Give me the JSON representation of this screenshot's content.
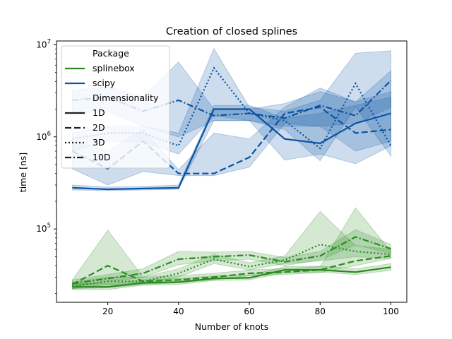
{
  "chart_data": {
    "type": "line",
    "title": "Creation of closed splines",
    "xlabel": "Number of knots",
    "ylabel": "time [ns]",
    "yscale": "log",
    "xlim": [
      5.5,
      104.5
    ],
    "ylim": [
      16000,
      11000000
    ],
    "xticks": [
      20,
      40,
      60,
      80,
      100
    ],
    "yticks": [
      {
        "value": 100000,
        "base": "10",
        "exp": "5"
      },
      {
        "value": 1000000,
        "base": "10",
        "exp": "6"
      },
      {
        "value": 10000000,
        "base": "10",
        "exp": "7"
      }
    ],
    "grid": false,
    "legend_position": "top-left",
    "x": [
      10,
      20,
      30,
      40,
      50,
      60,
      70,
      80,
      90,
      100
    ],
    "colors": {
      "splinebox": "#2a8a1f",
      "scipy": "#0b53a3"
    },
    "legend": {
      "package_title": "Package",
      "packages": [
        "splinebox",
        "scipy"
      ],
      "dim_title": "Dimensionality",
      "dims": [
        "1D",
        "2D",
        "3D",
        "10D"
      ]
    },
    "series": [
      {
        "package": "splinebox",
        "dim": "1D",
        "values": [
          23500,
          23500,
          26000,
          26500,
          29000,
          29500,
          36000,
          36000,
          34000,
          38500
        ],
        "lower": [
          22000,
          22000,
          24500,
          25000,
          27500,
          28000,
          33500,
          34000,
          32000,
          35500
        ],
        "upper": [
          25500,
          25500,
          28000,
          29000,
          31000,
          31500,
          39000,
          39500,
          37000,
          42000
        ]
      },
      {
        "package": "splinebox",
        "dim": "2D",
        "values": [
          25000,
          40000,
          27000,
          28000,
          30000,
          33000,
          34000,
          36000,
          45000,
          51000
        ],
        "lower": [
          22500,
          23000,
          25000,
          26000,
          28000,
          31000,
          32000,
          33500,
          40000,
          48000
        ],
        "upper": [
          28000,
          97000,
          30000,
          31000,
          33000,
          36000,
          37000,
          39000,
          170000,
          57000
        ]
      },
      {
        "package": "splinebox",
        "dim": "3D",
        "values": [
          24000,
          27000,
          27000,
          33000,
          47000,
          39000,
          46000,
          68000,
          57000,
          53000
        ],
        "lower": [
          22500,
          25000,
          25500,
          30000,
          42000,
          36000,
          42000,
          45000,
          50000,
          48000
        ],
        "upper": [
          26500,
          30000,
          30000,
          37000,
          53000,
          43000,
          51000,
          155000,
          66000,
          60000
        ]
      },
      {
        "package": "splinebox",
        "dim": "10D",
        "values": [
          25500,
          29000,
          33000,
          47000,
          50000,
          52000,
          44000,
          51000,
          82000,
          61000
        ],
        "lower": [
          23500,
          26500,
          30000,
          41000,
          45000,
          47000,
          40000,
          46000,
          67000,
          54000
        ],
        "upper": [
          28000,
          32000,
          37000,
          57000,
          56000,
          57000,
          49000,
          57000,
          98000,
          68000
        ]
      },
      {
        "package": "scipy",
        "dim": "1D",
        "values": [
          280000,
          270000,
          275000,
          280000,
          2000000,
          2000000,
          950000,
          850000,
          1400000,
          1800000
        ],
        "lower": [
          265000,
          262000,
          265000,
          270000,
          1500000,
          1500000,
          560000,
          650000,
          510000,
          800000
        ],
        "upper": [
          300000,
          285000,
          290000,
          300000,
          2200000,
          2200000,
          1600000,
          1800000,
          2200000,
          2700000
        ]
      },
      {
        "package": "scipy",
        "dim": "2D",
        "values": [
          700000,
          450000,
          900000,
          400000,
          400000,
          600000,
          1800000,
          2100000,
          1100000,
          1200000
        ],
        "lower": [
          450000,
          300000,
          420000,
          380000,
          380000,
          470000,
          1400000,
          1300000,
          700000,
          900000
        ],
        "upper": [
          900000,
          700000,
          1200000,
          440000,
          1100000,
          950000,
          2100000,
          3400000,
          2400000,
          3100000
        ]
      },
      {
        "package": "scipy",
        "dim": "3D",
        "values": [
          950000,
          1100000,
          1100000,
          800000,
          5600000,
          1800000,
          1500000,
          750000,
          3800000,
          800000
        ],
        "lower": [
          700000,
          900000,
          880000,
          650000,
          1700000,
          1500000,
          1200000,
          550000,
          2100000,
          620000
        ],
        "upper": [
          1100000,
          1300000,
          1300000,
          1100000,
          9100000,
          2100000,
          1900000,
          2500000,
          8100000,
          8600000
        ]
      },
      {
        "package": "scipy",
        "dim": "10D",
        "values": [
          2500000,
          2700000,
          1900000,
          2500000,
          1700000,
          1800000,
          1600000,
          2200000,
          1700000,
          4100000
        ],
        "lower": [
          1800000,
          1900000,
          1300000,
          1000000,
          1500000,
          1500000,
          1300000,
          1300000,
          1400000,
          2100000
        ],
        "upper": [
          3200000,
          3500000,
          2700000,
          6500000,
          2000000,
          2000000,
          2300000,
          3100000,
          2400000,
          5200000
        ]
      }
    ]
  }
}
